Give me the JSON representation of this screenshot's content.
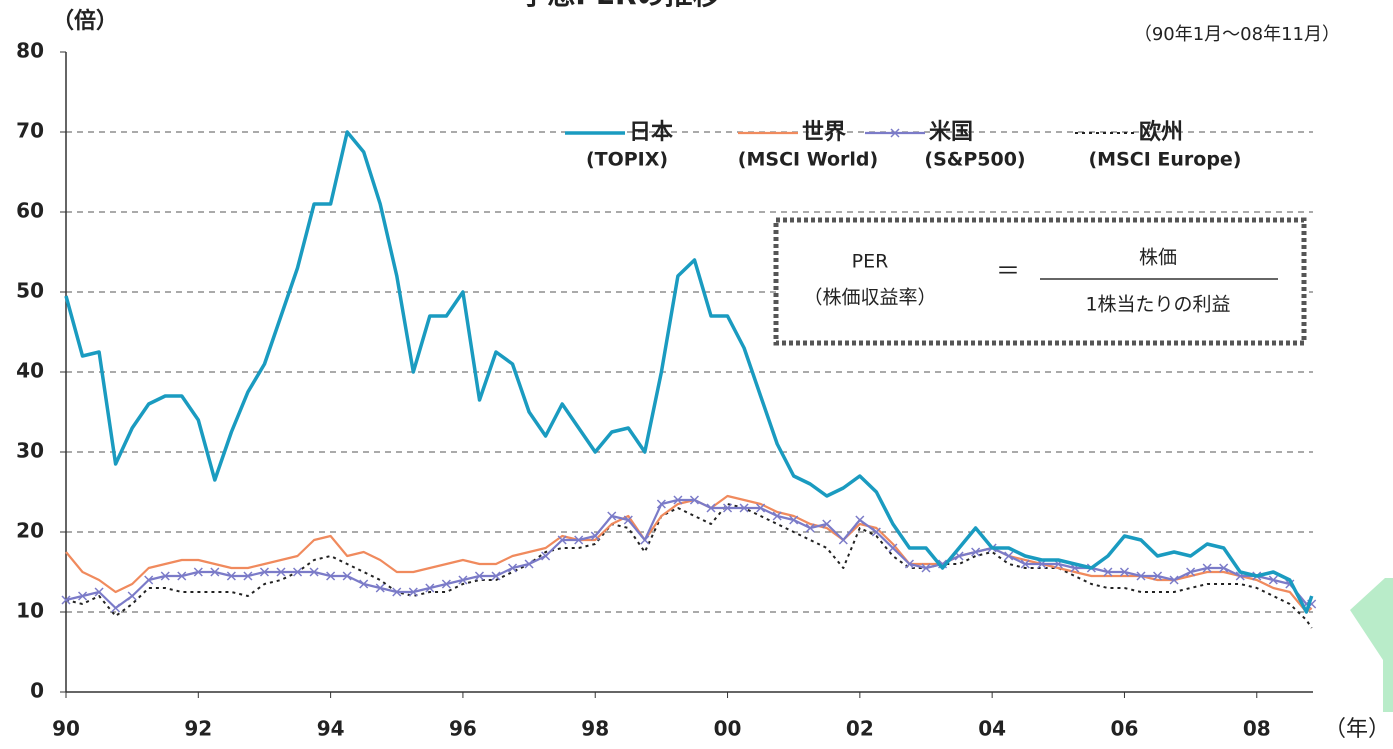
{
  "chart_data": {
    "type": "line",
    "title": "予想PERの推移",
    "y_unit": "（倍）",
    "period": "（90年1月～08年11月）",
    "x_unit": "（年）",
    "xlim": [
      1990,
      2008.85
    ],
    "xticks": [
      {
        "value": 1990,
        "label": "90"
      },
      {
        "value": 1992,
        "label": "92"
      },
      {
        "value": 1994,
        "label": "94"
      },
      {
        "value": 1996,
        "label": "96"
      },
      {
        "value": 1998,
        "label": "98"
      },
      {
        "value": 2000,
        "label": "00"
      },
      {
        "value": 2002,
        "label": "02"
      },
      {
        "value": 2004,
        "label": "04"
      },
      {
        "value": 2006,
        "label": "06"
      },
      {
        "value": 2008,
        "label": "08"
      }
    ],
    "ylim": [
      0,
      80
    ],
    "yticks": [
      0,
      10,
      20,
      30,
      40,
      50,
      60,
      70,
      80
    ],
    "grid": true,
    "x": [
      1990,
      1990.25,
      1990.5,
      1990.75,
      1991,
      1991.25,
      1991.5,
      1991.75,
      1992,
      1992.25,
      1992.5,
      1992.75,
      1993,
      1993.25,
      1993.5,
      1993.75,
      1994,
      1994.25,
      1994.5,
      1994.75,
      1995,
      1995.25,
      1995.5,
      1995.75,
      1996,
      1996.25,
      1996.5,
      1996.75,
      1997,
      1997.25,
      1997.5,
      1997.75,
      1998,
      1998.25,
      1998.5,
      1998.75,
      1999,
      1999.25,
      1999.5,
      1999.75,
      2000,
      2000.25,
      2000.5,
      2000.75,
      2001,
      2001.25,
      2001.5,
      2001.75,
      2002,
      2002.25,
      2002.5,
      2002.75,
      2003,
      2003.25,
      2003.5,
      2003.75,
      2004,
      2004.25,
      2004.5,
      2004.75,
      2005,
      2005.25,
      2005.5,
      2005.75,
      2006,
      2006.25,
      2006.5,
      2006.75,
      2007,
      2007.25,
      2007.5,
      2007.75,
      2008,
      2008.25,
      2008.5,
      2008.75,
      2008.83
    ],
    "series": [
      {
        "name": "日本",
        "index": "(TOPIX)",
        "color": "#1a9bc0",
        "style": "solid",
        "values": [
          49.5,
          42,
          42.5,
          28.5,
          33,
          36,
          37,
          37,
          34,
          26.5,
          32.5,
          37.5,
          41,
          47,
          53,
          61,
          61,
          70,
          67.5,
          61,
          52,
          40,
          47,
          47,
          50,
          36.5,
          42.5,
          41,
          35,
          32,
          36,
          33,
          30,
          32.5,
          33,
          30,
          40,
          52,
          54,
          47,
          47,
          43,
          37,
          31,
          27,
          26,
          24.5,
          25.5,
          27,
          25,
          21,
          18,
          18,
          15.5,
          18,
          20.5,
          18,
          18,
          17,
          16.5,
          16.5,
          16,
          15.5,
          17,
          19.5,
          19,
          17,
          17.5,
          17,
          18.5,
          18,
          15,
          14.5,
          15,
          14,
          10,
          12
        ]
      },
      {
        "name": "世界",
        "index": "(MSCI World)",
        "color": "#f08a5d",
        "style": "solid",
        "values": [
          17.5,
          15,
          14,
          12.5,
          13.5,
          15.5,
          16,
          16.5,
          16.5,
          16,
          15.5,
          15.5,
          16,
          16.5,
          17,
          19,
          19.5,
          17,
          17.5,
          16.5,
          15,
          15,
          15.5,
          16,
          16.5,
          16,
          16,
          17,
          17.5,
          18,
          19.5,
          19,
          19,
          21,
          22,
          19,
          22,
          23.5,
          24,
          23,
          24.5,
          24,
          23.5,
          22.5,
          22,
          21,
          20.5,
          19,
          21,
          20.5,
          18.5,
          16,
          16,
          16,
          17,
          17.5,
          18,
          17,
          16.5,
          16,
          15.5,
          15,
          14.5,
          14.5,
          14.5,
          14.5,
          14,
          14,
          14.5,
          15,
          15,
          14.5,
          14,
          13,
          12.5,
          10,
          10.5
        ]
      },
      {
        "name": "米国",
        "index": "(S&P500)",
        "color": "#7b7bc8",
        "style": "cross",
        "values": [
          11.5,
          12,
          12.5,
          10.5,
          12,
          14,
          14.5,
          14.5,
          15,
          15,
          14.5,
          14.5,
          15,
          15,
          15,
          15,
          14.5,
          14.5,
          13.5,
          13,
          12.5,
          12.5,
          13,
          13.5,
          14,
          14.5,
          14.5,
          15.5,
          16,
          17,
          19,
          19,
          19.5,
          22,
          21.5,
          19,
          23.5,
          24,
          24,
          23,
          23,
          23,
          23,
          22,
          21.5,
          20.5,
          21,
          19,
          21.5,
          20,
          18,
          16,
          15.5,
          16,
          17,
          17.5,
          18,
          17,
          16,
          16,
          16,
          15.5,
          15.5,
          15,
          15,
          14.5,
          14.5,
          14,
          15,
          15.5,
          15.5,
          14.5,
          14.5,
          14,
          13.5,
          11,
          11
        ]
      },
      {
        "name": "欧州",
        "index": "(MSCI Europe)",
        "color": "#222222",
        "style": "dotted",
        "values": [
          11.5,
          11,
          12,
          9.5,
          11,
          13,
          13,
          12.5,
          12.5,
          12.5,
          12.5,
          12,
          13.5,
          14,
          15,
          16.5,
          17,
          16,
          15,
          14,
          12.5,
          12,
          12.5,
          12.5,
          13.5,
          14,
          14,
          15,
          16,
          17.5,
          18,
          18,
          18.5,
          21,
          20.5,
          17.5,
          22,
          23,
          22,
          21,
          23.5,
          23,
          22,
          21,
          20,
          19,
          18,
          15.5,
          20.5,
          19.5,
          17,
          15.5,
          15.5,
          16,
          16,
          17,
          17.5,
          16,
          15.5,
          15.5,
          15.5,
          14.5,
          13.5,
          13,
          13,
          12.5,
          12.5,
          12.5,
          13,
          13.5,
          13.5,
          13.5,
          13,
          12,
          11,
          9,
          8
        ]
      }
    ],
    "annotation": {
      "lhs": "PER",
      "lhs_note": "（株価収益率）",
      "equals": "＝",
      "numerator": "株価",
      "denominator": "1株当たりの利益"
    }
  }
}
